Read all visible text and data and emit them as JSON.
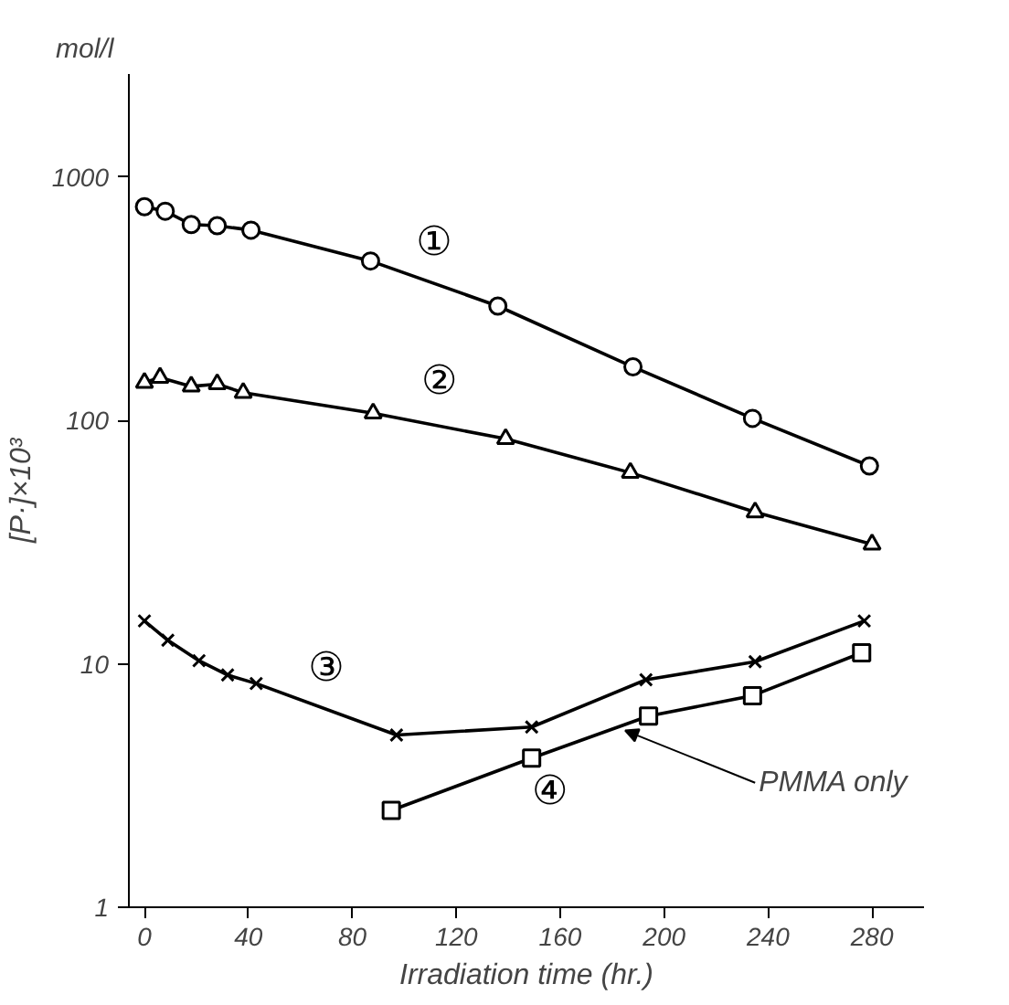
{
  "chart_data": {
    "type": "line",
    "xlabel": "Irradiation time (hr.)",
    "ylabel": "[P·]×10³",
    "log": "y",
    "grid": false,
    "legend": false,
    "line_style": "solid",
    "xlim": [
      -6,
      300
    ],
    "xticks": [
      0,
      40,
      80,
      120,
      160,
      200,
      240,
      280
    ],
    "ylim": [
      1,
      2650
    ],
    "yticks": [
      1,
      10,
      100,
      1000
    ],
    "series": [
      {
        "name": "①",
        "color": "#000000",
        "marker": "circle",
        "x": [
          0,
          8,
          18,
          28,
          41,
          87,
          136,
          188,
          234,
          279
        ],
        "values": [
          755,
          724,
          638,
          631,
          605,
          452,
          295,
          166,
          102,
          65
        ]
      },
      {
        "name": "②",
        "color": "#000000",
        "marker": "triangle",
        "x": [
          0,
          6,
          18,
          28,
          38,
          88,
          139,
          187,
          235,
          280
        ],
        "values": [
          143,
          150,
          138,
          141,
          130,
          107,
          84,
          61,
          42,
          31
        ]
      },
      {
        "name": "③",
        "color": "#000000",
        "marker": "cross",
        "x": [
          0,
          9,
          21,
          32,
          43,
          97,
          149,
          193,
          235,
          277
        ],
        "values": [
          15,
          12.5,
          10.3,
          9.0,
          8.3,
          5.1,
          5.5,
          8.6,
          10.2,
          15
        ]
      },
      {
        "name": "④",
        "color": "#000000",
        "marker": "square",
        "x": [
          95,
          149,
          194,
          234,
          276
        ],
        "values": [
          2.5,
          4.1,
          6.1,
          7.4,
          11.1
        ]
      }
    ],
    "annotations": [
      "mol/l",
      {
        "text": "PMMA only",
        "x": 185,
        "y": 5.6
      }
    ]
  }
}
